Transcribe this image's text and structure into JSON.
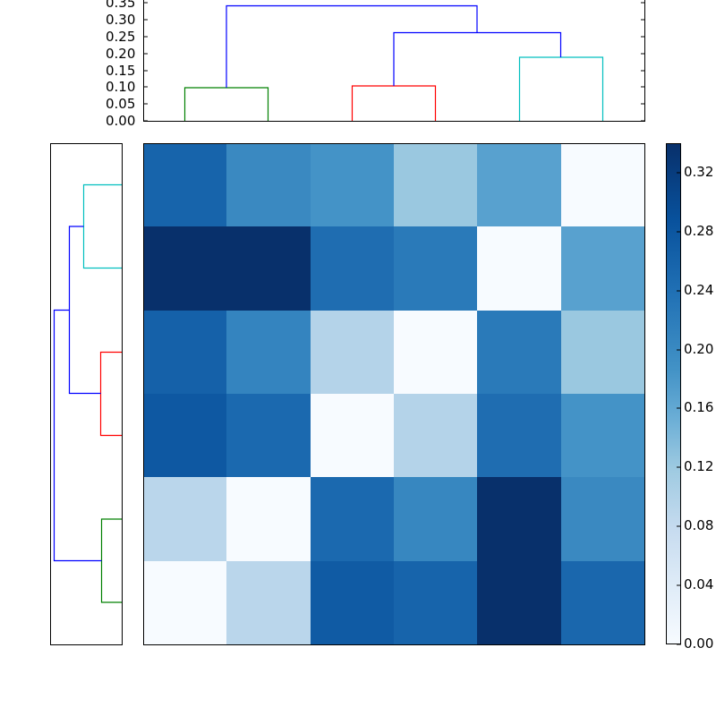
{
  "chart_data": [
    {
      "type": "dendrogram",
      "position": "top",
      "title": "",
      "ylabel": "",
      "ylim": [
        0.0,
        0.35
      ],
      "yticks": [
        "0.00",
        "0.05",
        "0.10",
        "0.15",
        "0.20",
        "0.25",
        "0.30",
        "0.35"
      ],
      "leaves": 6,
      "links": [
        {
          "color": "#008000",
          "leaves": [
            0,
            1
          ],
          "height": 0.1
        },
        {
          "color": "#ff0000",
          "leaves": [
            2,
            3
          ],
          "height": 0.105
        },
        {
          "color": "#00bfbf",
          "leaves": [
            4,
            5
          ],
          "height": 0.19
        },
        {
          "color": "#0000ff",
          "children": [
            "[2,3]",
            "[4,5]"
          ],
          "height": 0.26
        },
        {
          "color": "#0000ff",
          "children": [
            "[0,1]",
            "[2..5]"
          ],
          "height": 0.34
        }
      ]
    },
    {
      "type": "dendrogram",
      "position": "left",
      "orientation": "horizontal",
      "leaves": 6,
      "links": [
        {
          "color": "#00bfbf",
          "leaves": [
            "row0",
            "row1"
          ]
        },
        {
          "color": "#ff0000",
          "leaves": [
            "row2",
            "row3"
          ]
        },
        {
          "color": "#008000",
          "leaves": [
            "row4",
            "row5"
          ]
        },
        {
          "color": "#0000ff",
          "children": [
            "[row0,row1]",
            "[row2,row3]"
          ]
        },
        {
          "color": "#0000ff",
          "children": [
            "[row0..row3]",
            "[row4,row5]"
          ]
        }
      ]
    },
    {
      "type": "heatmap",
      "colormap": "Blues",
      "rows": 6,
      "cols": 6,
      "values": [
        [
          0.285,
          0.225,
          0.205,
          0.13,
          0.18,
          0.0
        ],
        [
          0.34,
          0.34,
          0.265,
          0.245,
          0.0,
          0.18
        ],
        [
          0.29,
          0.235,
          0.1,
          0.0,
          0.245,
          0.13
        ],
        [
          0.3,
          0.275,
          0.0,
          0.1,
          0.265,
          0.205
        ],
        [
          0.095,
          0.0,
          0.275,
          0.23,
          0.34,
          0.225
        ],
        [
          0.0,
          0.095,
          0.295,
          0.285,
          0.34,
          0.28
        ]
      ],
      "colorbar": {
        "range": [
          0.0,
          0.34
        ],
        "ticks": [
          "0.00",
          "0.04",
          "0.08",
          "0.12",
          "0.16",
          "0.20",
          "0.24",
          "0.28",
          "0.32"
        ]
      }
    }
  ],
  "heatmap_colors": [
    [
      "#1764ab",
      "#3a89c1",
      "#4493c7",
      "#9ac8e0",
      "#58a1cf",
      "#f7fbff"
    ],
    [
      "#08306b",
      "#08306b",
      "#1f6db1",
      "#2a7ab9",
      "#f7fbff",
      "#58a1cf"
    ],
    [
      "#1561a9",
      "#3484bf",
      "#b4d3e9",
      "#f7fbff",
      "#2a7ab9",
      "#9ac8e0"
    ],
    [
      "#0e58a2",
      "#1b69af",
      "#f7fbff",
      "#b4d3e9",
      "#1f6db1",
      "#4493c7"
    ],
    [
      "#bad6eb",
      "#f7fbff",
      "#1b69af",
      "#3787c0",
      "#08306b",
      "#3a89c1"
    ],
    [
      "#f7fbff",
      "#bad6eb",
      "#105ba4",
      "#1764ab",
      "#08306b",
      "#1a67ad"
    ]
  ],
  "top_axis": {
    "ticks": [
      "0.00",
      "0.05",
      "0.10",
      "0.15",
      "0.20",
      "0.25",
      "0.30",
      "0.35"
    ]
  },
  "colorbar_axis": {
    "ticks": [
      "0.00",
      "0.04",
      "0.08",
      "0.12",
      "0.16",
      "0.20",
      "0.24",
      "0.28",
      "0.32"
    ]
  },
  "colors": {
    "green": "#008000",
    "red": "#ff0000",
    "cyan": "#00bfbf",
    "blue": "#0000ff"
  }
}
